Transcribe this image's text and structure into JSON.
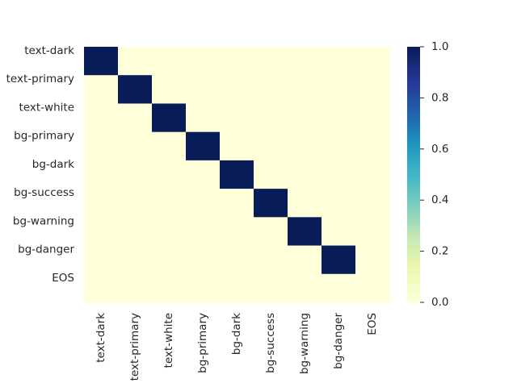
{
  "chart_data": {
    "type": "heatmap",
    "title": "",
    "xlabel": "",
    "ylabel": "",
    "rows": [
      "text-dark",
      "text-primary",
      "text-white",
      "bg-primary",
      "bg-dark",
      "bg-success",
      "bg-warning",
      "bg-danger",
      "EOS"
    ],
    "columns": [
      "text-dark",
      "text-primary",
      "text-white",
      "bg-primary",
      "bg-dark",
      "bg-success",
      "bg-warning",
      "bg-danger",
      "EOS"
    ],
    "values": [
      [
        1,
        0,
        0,
        0,
        0,
        0,
        0,
        0,
        0
      ],
      [
        0,
        1,
        0,
        0,
        0,
        0,
        0,
        0,
        0
      ],
      [
        0,
        0,
        1,
        0,
        0,
        0,
        0,
        0,
        0
      ],
      [
        0,
        0,
        0,
        1,
        0,
        0,
        0,
        0,
        0
      ],
      [
        0,
        0,
        0,
        0,
        1,
        0,
        0,
        0,
        0
      ],
      [
        0,
        0,
        0,
        0,
        0,
        1,
        0,
        0,
        0
      ],
      [
        0,
        0,
        0,
        0,
        0,
        0,
        1,
        0,
        0
      ],
      [
        0,
        0,
        0,
        0,
        0,
        0,
        0,
        1,
        0
      ],
      [
        0,
        0,
        0,
        0,
        0,
        0,
        0,
        0,
        0
      ]
    ],
    "colorbar": {
      "range": [
        0.0,
        1.0
      ],
      "ticks": [
        "0.0",
        "0.2",
        "0.4",
        "0.6",
        "0.8",
        "1.0"
      ],
      "colormap": "YlGnBu",
      "low_color": "#ffffd9",
      "high_color": "#081d58"
    }
  }
}
